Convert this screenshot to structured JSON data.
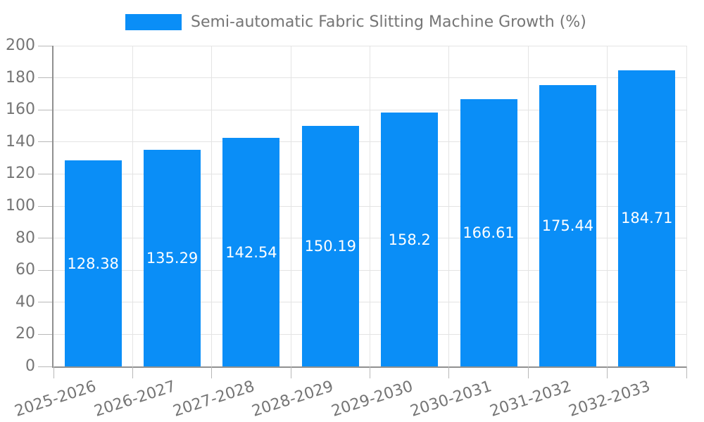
{
  "legend": {
    "label": "Semi-automatic Fabric Slitting Machine Growth (%)"
  },
  "colors": {
    "bar": "#0a8ef7",
    "grid": "#e4e4e4",
    "axis": "#909090",
    "tick": "#b8b8b8",
    "text": "#757575",
    "bar_label": "#ffffff",
    "background": "#ffffff"
  },
  "chart_data": {
    "type": "bar",
    "title": "",
    "xlabel": "",
    "ylabel": "",
    "categories": [
      "2025-2026",
      "2026-2027",
      "2027-2028",
      "2028-2029",
      "2029-2030",
      "2030-2031",
      "2031-2032",
      "2032-2033"
    ],
    "series": [
      {
        "name": "Semi-automatic Fabric Slitting Machine Growth (%)",
        "values": [
          128.38,
          135.29,
          142.54,
          150.19,
          158.2,
          166.61,
          175.44,
          184.71
        ]
      }
    ],
    "ylim": [
      0,
      200
    ],
    "ytick_step": 20,
    "grid": true,
    "legend_position": "top-left",
    "value_labels": "inside-center",
    "bar_width_fraction": 0.72,
    "x_label_rotation_deg": -18
  }
}
